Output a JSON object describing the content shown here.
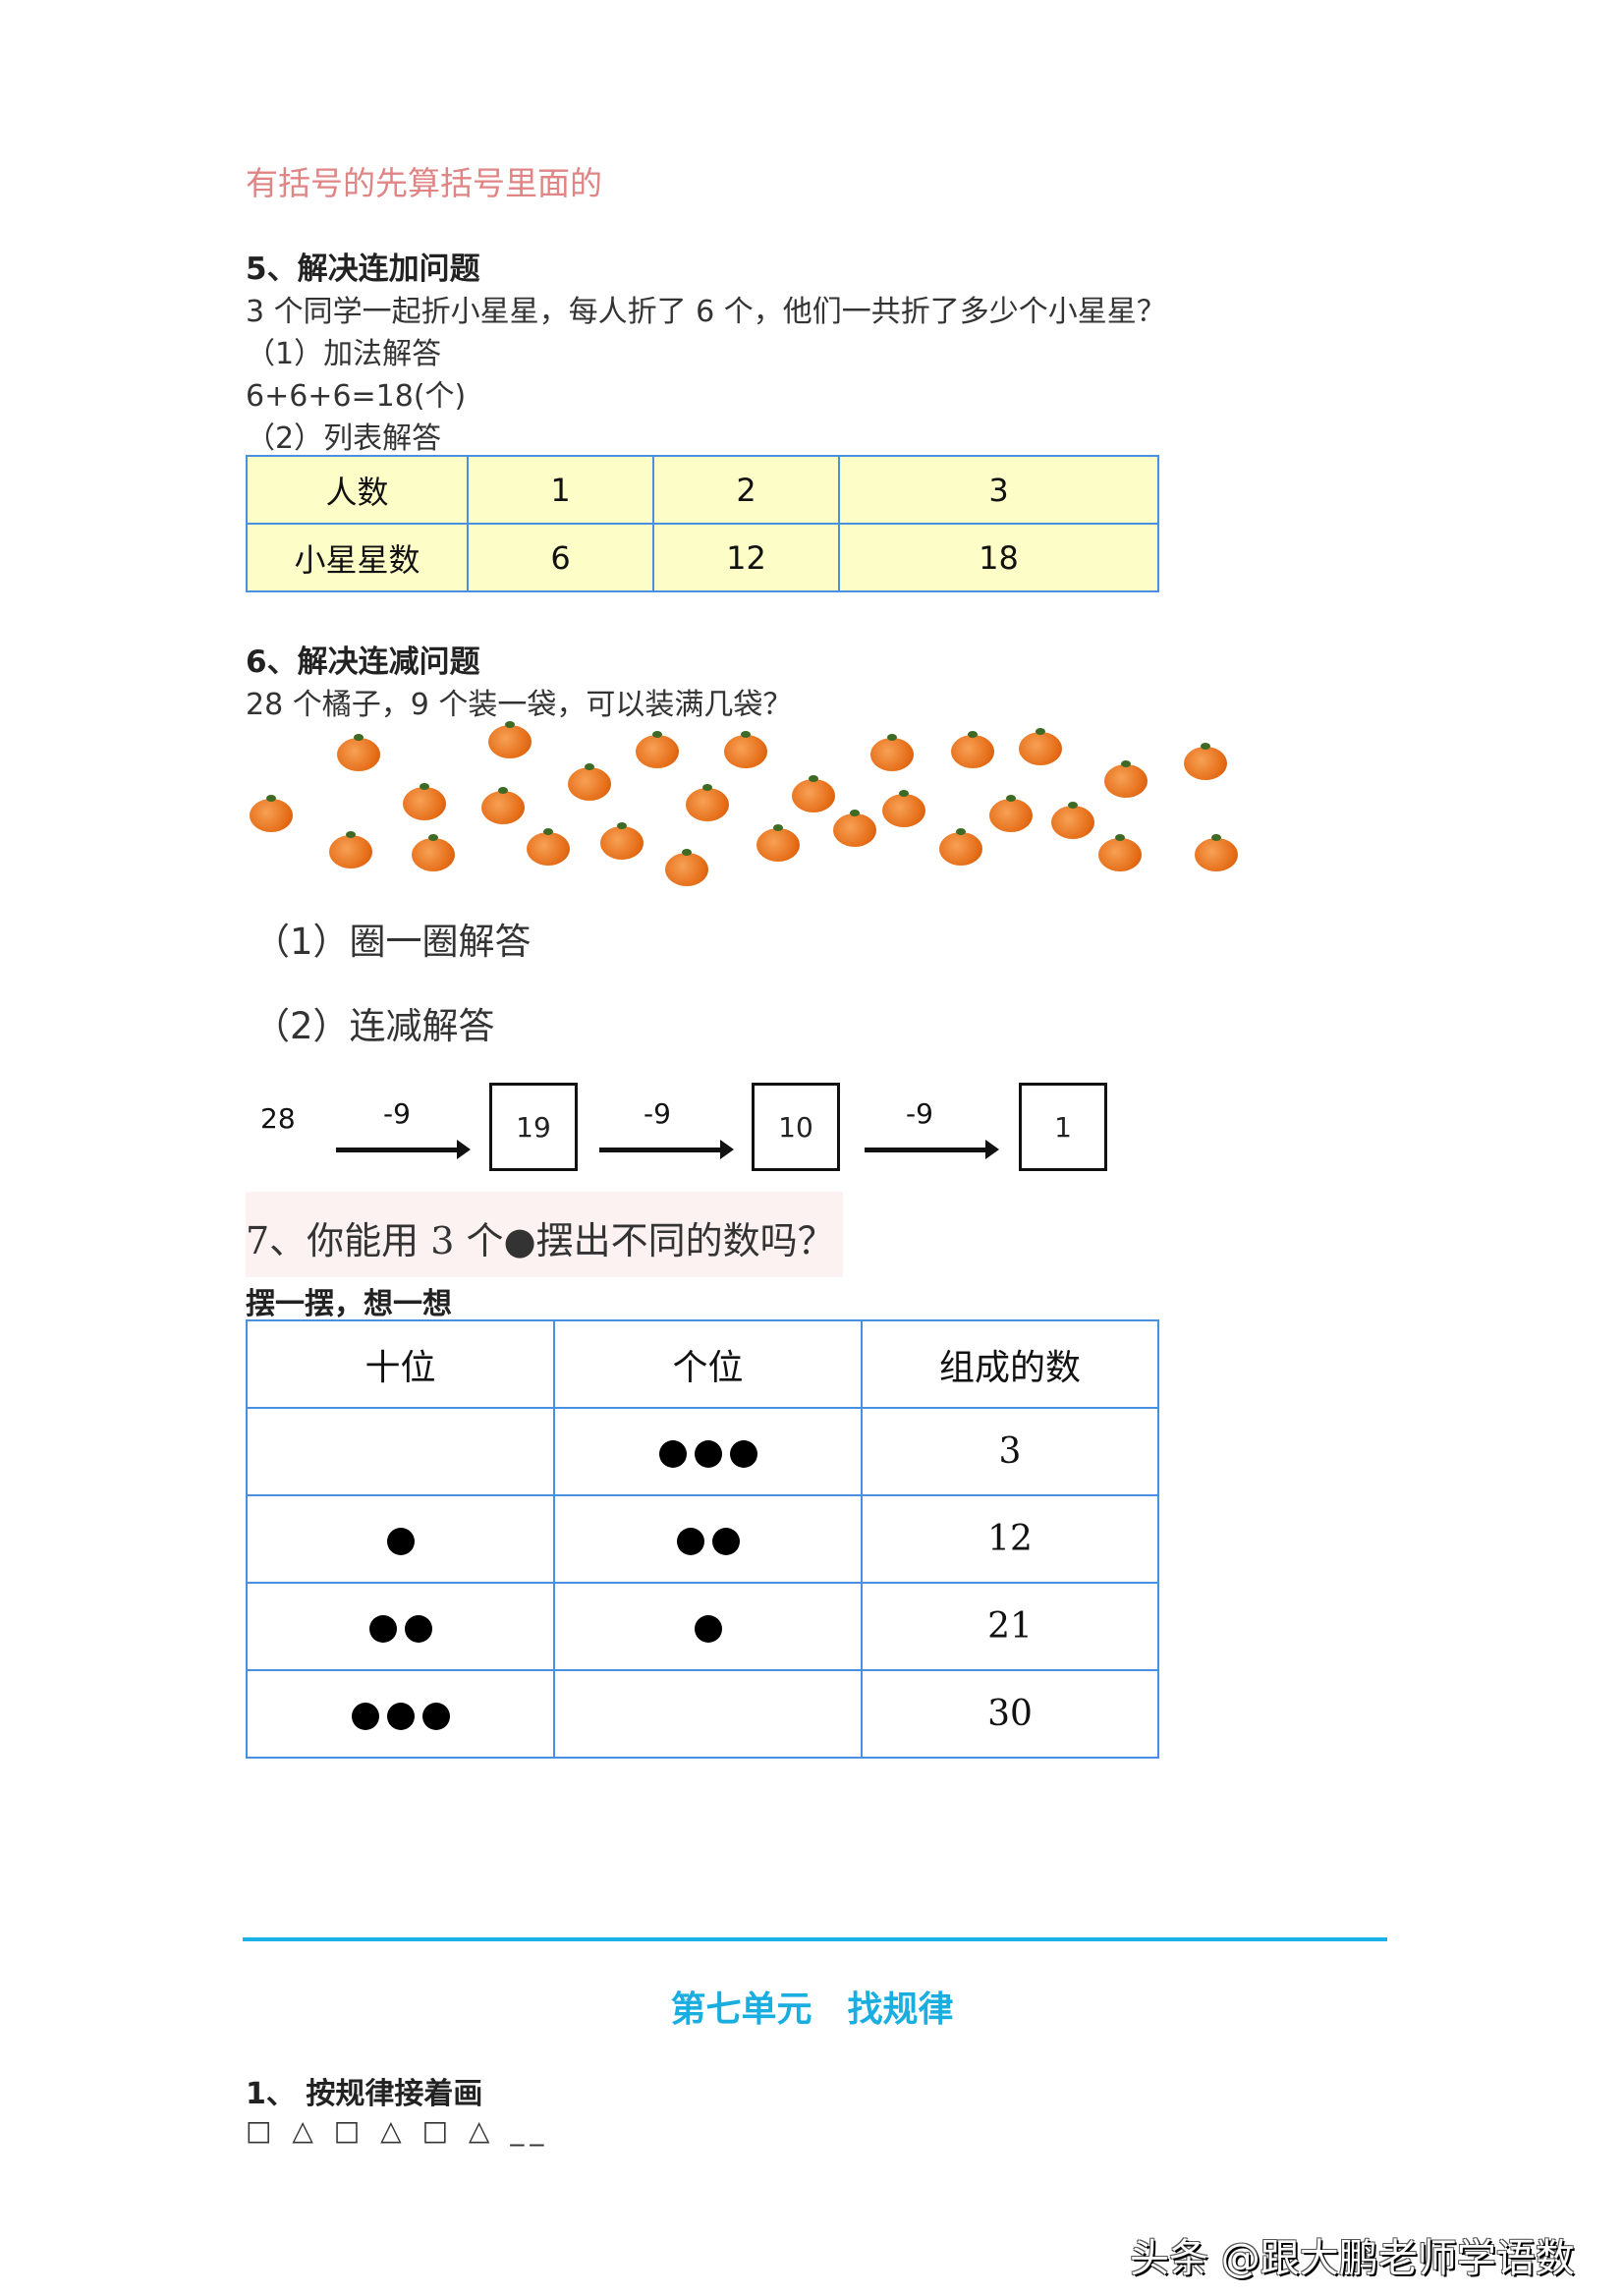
{
  "rule_note": "有括号的先算括号里面的",
  "q5": {
    "title": "5、解决连加问题",
    "question": "3 个同学一起折小星星，每人折了 6 个，他们一共折了多少个小星星？",
    "m1": "（1）加法解答",
    "m1_answer": "6+6+6=18(个)",
    "m2": "（2）列表解答",
    "table": [
      [
        "人数",
        "1",
        "2",
        "3"
      ],
      [
        "小星星数",
        "6",
        "12",
        "18"
      ]
    ]
  },
  "q6": {
    "title": "6、解决连减问题",
    "question": "28 个橘子，9 个装一袋，可以装满几袋？",
    "orange_count": 28,
    "m1": "（1）圈一圈解答",
    "m2": "（2）连减解答",
    "chain": {
      "start": "28",
      "step": "-9",
      "results": [
        "19",
        "10",
        "1"
      ]
    }
  },
  "q7": {
    "title": "7、你能用 3 个●摆出不同的数吗？",
    "subtitle": "摆一摆，想一想",
    "headers": [
      "十位",
      "个位",
      "组成的数"
    ],
    "rows": [
      {
        "tens": 0,
        "ones": 3,
        "number": "3"
      },
      {
        "tens": 1,
        "ones": 2,
        "number": "12"
      },
      {
        "tens": 2,
        "ones": 1,
        "number": "21"
      },
      {
        "tens": 3,
        "ones": 0,
        "number": "30"
      }
    ]
  },
  "unit7": {
    "divider_color": "#1ab2e8",
    "title": "第七单元　找规律",
    "q1_title": "1、 按规律接着画",
    "pattern": "□ △ □ △ □ △ __"
  },
  "watermark": "头条 @跟大鹏老师学语数"
}
